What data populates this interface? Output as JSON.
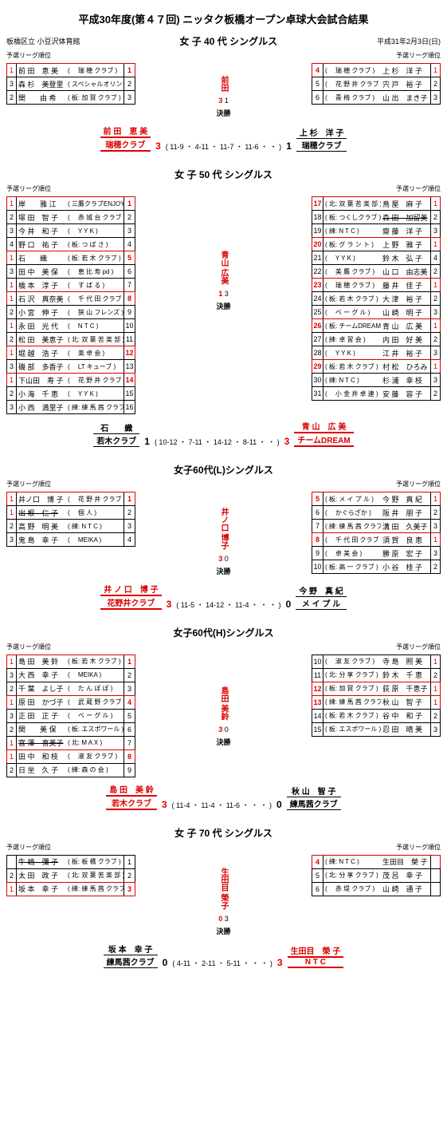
{
  "title": "平成30年度(第４７回) ニッタク板橋オープン卓球大会試合結果",
  "venue": "板橋区立 小豆沢体育館",
  "date": "平成31年2月3日(日)",
  "rank_label": "予選リーグ順位",
  "final_label": "決勝",
  "colors": {
    "win": "#d00",
    "border": "#000",
    "bg": "#fff"
  },
  "sections": [
    {
      "title": "女 子 40 代 シングルス",
      "center_name": "前田",
      "center_score": "3 | 1",
      "left": [
        {
          "rank": "1",
          "r1": true,
          "name": "前 田　恵 美",
          "club": "( 　瑞 穂 クラブ )",
          "seed": "1",
          "win": true
        },
        {
          "rank": "3",
          "name": "森 杉　美登里",
          "club": "( スペシャルオリンピックス )",
          "seed": "2"
        },
        {
          "rank": "2",
          "name": "関　　由 希",
          "club": "( 板: 加 賀 クラブ )",
          "seed": "3"
        }
      ],
      "right": [
        {
          "rank": "1",
          "r1": true,
          "name": "上 杉　洋 子",
          "club": "( 　瑞 穂 クラブ )",
          "seed": "4",
          "win": true
        },
        {
          "rank": "2",
          "name": "宍 戸　裕 子",
          "club": "( 　花 野 井 クラブ )",
          "seed": "5"
        },
        {
          "rank": "3",
          "name": "山 出　まき子",
          "club": "( 　青 梅 クラブ )",
          "seed": "6"
        }
      ],
      "result": {
        "winner_name": "前 田　恵 美",
        "winner_club": "瑞穂クラブ",
        "winner_score": "3",
        "loser_name": "上 杉　洋 子",
        "loser_club": "瑞穂クラブ",
        "loser_score": "1",
        "games": "( 11-9 ・ 4-11 ・ 11-7 ・ 11-6 ・ ・ )"
      }
    },
    {
      "title": "女 子 50 代 シングルス",
      "center_name": "青山 広美",
      "center_score": "1 | 3",
      "left": [
        {
          "rank": "1",
          "r1": true,
          "name": "岸　　雅 江",
          "club": "( 三鷹クラブENJOY )",
          "seed": "1",
          "win": true
        },
        {
          "rank": "2",
          "name": "塚 田　智 子",
          "club": "( 　赤 城 台 クラブ )",
          "seed": "2"
        },
        {
          "rank": "3",
          "name": "今 井　和 子",
          "club": "( 　Y Y K )",
          "seed": "3"
        },
        {
          "rank": "4",
          "name": "野 口　祐 子",
          "club": "( 板: つ ば さ )",
          "seed": "4"
        },
        {
          "rank": "1",
          "r1": true,
          "name": "石　　織",
          "club": "( 板: 若 木 クラブ )",
          "seed": "5",
          "win": true
        },
        {
          "rank": "3",
          "name": "田 中　美 保",
          "club": "( 　恵 比 寿 pd )",
          "seed": "6"
        },
        {
          "rank": "1",
          "r1": true,
          "name": "橋 本　淳 子",
          "club": "( 　す ば る )",
          "seed": "7"
        },
        {
          "rank": "1",
          "r1": true,
          "name": "石 沢　真奈美",
          "club": "( 　千 代 田 クラブ )",
          "seed": "8",
          "win": true
        },
        {
          "rank": "2",
          "name": "小 宮　伸 子",
          "club": "( 　狭 山 フレンズ )",
          "seed": "9"
        },
        {
          "rank": "1",
          "r1": true,
          "name": "永 田　光 代",
          "club": "( 　N T C )",
          "seed": "10"
        },
        {
          "rank": "2",
          "name": "松 田　美恵子",
          "club": "( 北: 双 葉 苦 楽 部 )",
          "seed": "11"
        },
        {
          "rank": "1",
          "r1": true,
          "name": "堀 越　浩 子",
          "club": "( 　楽 卓 会 )",
          "seed": "12",
          "win": true
        },
        {
          "rank": "3",
          "name": "磯 部　多香子",
          "club": "( 　LT キューブ )",
          "seed": "13"
        },
        {
          "rank": "1",
          "r1": true,
          "name": "下山田　寿 子",
          "club": "( 　花 野 井 クラブ )",
          "seed": "14",
          "win": true
        },
        {
          "rank": "2",
          "name": "小 海　千 恵",
          "club": "( 　Y Y K )",
          "seed": "15"
        },
        {
          "rank": "3",
          "name": "小 西　満里子",
          "club": "( 練: 練 馬 茜 クラブ )",
          "seed": "16"
        }
      ],
      "right": [
        {
          "rank": "1",
          "r1": true,
          "name": "鳥 屋　麻 子",
          "club": "( 北: 双 葉 苦 楽 部 )",
          "seed": "17",
          "win": true
        },
        {
          "rank": "2",
          "name": "森 田　加留美",
          "club": "( 板: つくしクラブ )",
          "seed": "18",
          "strike": true
        },
        {
          "rank": "3",
          "name": "齋 藤　洋 子",
          "club": "( 練: N T C )",
          "seed": "19"
        },
        {
          "rank": "1",
          "r1": true,
          "name": "上 野　雅 子",
          "club": "( 板: グ ラ ン ト )",
          "seed": "20",
          "win": true
        },
        {
          "rank": "4",
          "name": "鈴 木　弘 子",
          "club": "( 　Y Y K )",
          "seed": "21"
        },
        {
          "rank": "2",
          "name": "山 口　由志美",
          "club": "( 　美 鷹 クラブ )",
          "seed": "22"
        },
        {
          "rank": "1",
          "r1": true,
          "name": "藤 井　佳 子",
          "club": "( 　瑞 穂 クラブ )",
          "seed": "23",
          "win": true
        },
        {
          "rank": "2",
          "name": "大 津　裕 子",
          "club": "( 板: 若 木 クラブ )",
          "seed": "24"
        },
        {
          "rank": "3",
          "name": "山 崎　明 子",
          "club": "( 　ベ ー グ ル )",
          "seed": "25"
        },
        {
          "rank": "1",
          "r1": true,
          "name": "青 山　広 美",
          "club": "( 板: チームDREAM )",
          "seed": "26",
          "win": true
        },
        {
          "rank": "2",
          "name": "内 田　好 美",
          "club": "( 練: 卓 習 会 )",
          "seed": "27"
        },
        {
          "rank": "3",
          "name": "江 井　裕 子",
          "club": "( 　Y Y K )",
          "seed": "28"
        },
        {
          "rank": "1",
          "r1": true,
          "name": "村 松　ひろみ",
          "club": "( 板: 若 木 クラブ )",
          "seed": "29",
          "win": true
        },
        {
          "rank": "3",
          "name": "杉 浦　幸 枝",
          "club": "( 練: N T C )",
          "seed": "30"
        },
        {
          "rank": "2",
          "name": "安 藤　容 子",
          "club": "( 　小 金 井 卓 連 )",
          "seed": "31"
        }
      ],
      "result": {
        "winner_name": "青 山　広 美",
        "winner_club": "チームDREAM",
        "winner_score": "3",
        "loser_name": "石　　織",
        "loser_club": "若木クラブ",
        "loser_score": "1",
        "games": "( 10-12 ・ 7-11 ・ 14-12 ・ 8-11 ・ ・ )",
        "winner_right": true
      }
    },
    {
      "title": "女子60代(L)シングルス",
      "center_name": "井ノ口 博子",
      "center_score": "3 | 0",
      "left": [
        {
          "rank": "1",
          "r1": true,
          "name": "井ノ口　博 子",
          "club": "( 　花 野 井 クラブ )",
          "seed": "1",
          "win": true
        },
        {
          "rank": "1",
          "r1": true,
          "name": "出 根　仁 子",
          "club": "( 　個 人 )",
          "seed": "2",
          "strike": true
        },
        {
          "rank": "2",
          "name": "高 野　明 美",
          "club": "( 練: N T C )",
          "seed": "3"
        },
        {
          "rank": "3",
          "name": "鬼 島　幸 子",
          "club": "( 　MEIKA )",
          "seed": "4"
        }
      ],
      "right": [
        {
          "rank": "1",
          "r1": true,
          "name": "今 野　真 紀",
          "club": "( 板: メ イ プ ル )",
          "seed": "5",
          "win": true
        },
        {
          "rank": "2",
          "name": "阪 井　朋 子",
          "club": "( 　かぐらざか )",
          "seed": "6"
        },
        {
          "rank": "3",
          "name": "溝 田　久美子",
          "club": "( 練: 練 馬 茜 クラブ )",
          "seed": "7"
        },
        {
          "rank": "1",
          "r1": true,
          "name": "須 賀　良 恵",
          "club": "( 　千 代 田 クラブ )",
          "seed": "8",
          "win": true
        },
        {
          "rank": "3",
          "name": "勝 原　宏 子",
          "club": "( 　卓 美 会 )",
          "seed": "9"
        },
        {
          "rank": "2",
          "name": "小 谷　桂 子",
          "club": "( 板: 高 一 クラブ )",
          "seed": "10"
        }
      ],
      "result": {
        "winner_name": "井 ノ 口　博 子",
        "winner_club": "花野井クラブ",
        "winner_score": "3",
        "loser_name": "今 野　真 紀",
        "loser_club": "メ イ プ ル",
        "loser_score": "0",
        "games": "( 11-5 ・ 14-12 ・ 11-4 ・ ・ ・ )"
      }
    },
    {
      "title": "女子60代(H)シングルス",
      "center_name": "島田 美鈴",
      "center_score": "3 | 0",
      "left": [
        {
          "rank": "1",
          "r1": true,
          "name": "島 田　美 鈴",
          "club": "( 板: 若 木 クラブ )",
          "seed": "1",
          "win": true
        },
        {
          "rank": "3",
          "name": "大 西　幸 子",
          "club": "( 　MEIKA )",
          "seed": "2"
        },
        {
          "rank": "2",
          "name": "千 葉　よし子",
          "club": "( 　た ん ぽ ぽ )",
          "seed": "3"
        },
        {
          "rank": "1",
          "r1": true,
          "name": "原 田　かづ子",
          "club": "( 　武 蔵 野 クラブ )",
          "seed": "4",
          "win": true
        },
        {
          "rank": "3",
          "name": "正 田　正 子",
          "club": "( 　ベ ー グ ル )",
          "seed": "5"
        },
        {
          "rank": "2",
          "name": "関　　美 保",
          "club": "( 板: エスポワール )",
          "seed": "6"
        },
        {
          "rank": "1",
          "r1": true,
          "name": "宮 澤　喜美子",
          "club": "( 北: M A X )",
          "seed": "7",
          "strike": true
        },
        {
          "rank": "1",
          "r1": true,
          "name": "田 中　和 枝",
          "club": "( 　淑 友 クラブ )",
          "seed": "8",
          "win": true
        },
        {
          "rank": "2",
          "name": "日 坐　久 子",
          "club": "( 練: 森 の 会 )",
          "seed": "9"
        }
      ],
      "right": [
        {
          "rank": "1",
          "r1": true,
          "name": "寺 島　照 美",
          "club": "( 　淑 友 クラブ )",
          "seed": "10"
        },
        {
          "rank": "2",
          "name": "鈴 木　千 恵",
          "club": "( 北: 分 享 クラブ )",
          "seed": "11"
        },
        {
          "rank": "1",
          "r1": true,
          "name": "荻 原　千恵子",
          "club": "( 板: 加 賀 クラブ )",
          "seed": "12",
          "win": true
        },
        {
          "rank": "1",
          "r1": true,
          "name": "秋 山　智 子",
          "club": "( 練: 練 馬 茜 クラブ )",
          "seed": "13",
          "win": true
        },
        {
          "rank": "2",
          "name": "谷 中　和 子",
          "club": "( 板: 若 木 クラブ )",
          "seed": "14"
        },
        {
          "rank": "3",
          "name": "忍 田　晴 美",
          "club": "( 板: エスポワール )",
          "seed": "15"
        }
      ],
      "result": {
        "winner_name": "島 田　美 鈴",
        "winner_club": "若木クラブ",
        "winner_score": "3",
        "loser_name": "秋 山　智 子",
        "loser_club": "練馬茜クラブ",
        "loser_score": "0",
        "games": "( 11-4 ・ 11-4 ・ 11-6 ・ ・ ・ )"
      }
    },
    {
      "title": "女 子 70 代 シングルス",
      "center_name": "生田目 榮子",
      "center_score": "0 | 3",
      "left": [
        {
          "rank": "",
          "name": "牛 嶋　彌 子",
          "club": "( 板: 板 橋 クラブ )",
          "seed": "1",
          "strike": true
        },
        {
          "rank": "2",
          "name": "太 田　政 子",
          "club": "( 北: 双 葉 苦 楽 部 )",
          "seed": "2"
        },
        {
          "rank": "1",
          "r1": true,
          "name": "坂 本　幸 子",
          "club": "( 練: 練 馬 茜 クラブ )",
          "seed": "3",
          "win": true
        }
      ],
      "right": [
        {
          "rank": "",
          "name": "生田目　榮 子",
          "club": "( 練: N T C )",
          "seed": "4",
          "win": true
        },
        {
          "rank": "",
          "name": "茂 呂　幸 子",
          "club": "( 北: 分 享 クラブ )",
          "seed": "5"
        },
        {
          "rank": "",
          "name": "山 崎　通 子",
          "club": "( 　赤 堤 クラブ )",
          "seed": "6"
        }
      ],
      "result": {
        "winner_name": "生田目　榮 子",
        "winner_club": "N T C",
        "winner_score": "3",
        "loser_name": "坂 本　幸 子",
        "loser_club": "練馬茜クラブ",
        "loser_score": "0",
        "games": "( 4-11 ・ 2-11 ・ 5-11 ・ ・ ・ )",
        "winner_right": true
      }
    }
  ]
}
